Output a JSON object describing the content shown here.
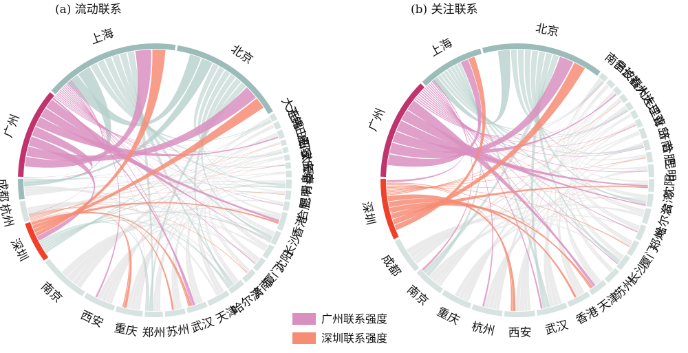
{
  "chart_data": [
    {
      "type": "chord",
      "title": "(a) 流动联系",
      "cities": [
        "广州",
        "上海",
        "北京",
        "大连",
        "无锡",
        "佛山",
        "三亚",
        "咸阳",
        "石家庄",
        "太原",
        "长春",
        "青岛",
        "昆明",
        "合肥",
        "香港",
        "长沙",
        "沈阳",
        "厦门",
        "济南",
        "哈尔滨",
        "天津",
        "武汉",
        "苏州",
        "郑州",
        "重庆",
        "西安",
        "南京",
        "深圳",
        "杭州",
        "成都"
      ],
      "segment_sizes": [
        20,
        30,
        26,
        1.5,
        1.5,
        1.8,
        1.2,
        1.2,
        1.3,
        1.3,
        1.5,
        2,
        2,
        2,
        4,
        3,
        3,
        3,
        3,
        3.5,
        5,
        4.5,
        4.5,
        4,
        6,
        7,
        11,
        9,
        4.5,
        4.5
      ]
    },
    {
      "type": "chord",
      "title": "(b) 关注联系",
      "cities": [
        "广州",
        "上海",
        "北京",
        "南昌",
        "宁波",
        "长春",
        "福州",
        "大连",
        "大理",
        "三亚",
        "青岛",
        "济南",
        "合肥",
        "昆明",
        "沈阳",
        "台湾",
        "哈尔滨",
        "郑州",
        "厦门",
        "长沙",
        "苏州",
        "天津",
        "香港",
        "武汉",
        "西安",
        "杭州",
        "重庆",
        "南京",
        "成都",
        "深圳"
      ],
      "segment_sizes": [
        20,
        13,
        24,
        1.5,
        1.5,
        1.5,
        1.5,
        1.5,
        1.5,
        1.5,
        2,
        2,
        2,
        2.5,
        2.5,
        2.5,
        3,
        3,
        3,
        3,
        3,
        3.5,
        4.5,
        6,
        6,
        6,
        6,
        6,
        7,
        12
      ]
    }
  ],
  "legend": [
    {
      "label": "广州联系强度",
      "color": "#d98fc0"
    },
    {
      "label": "深圳联系强度",
      "color": "#f68c74"
    }
  ],
  "colors": {
    "guangzhou_segment": "#c0336e",
    "shenzhen_segment": "#f0402a",
    "major_segment": "#9bbcb8",
    "minor_segment": "#d6e3e1",
    "other_chord": "#b7d0cc",
    "background_chord": "#e8e8e8",
    "guangzhou_chord": "#d98fc0",
    "shenzhen_chord": "#f68c74"
  }
}
